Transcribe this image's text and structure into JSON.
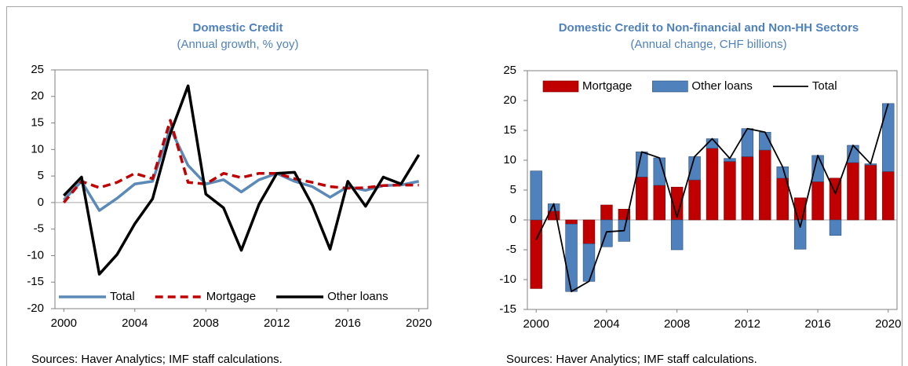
{
  "chart_data": [
    {
      "type": "line",
      "title": "Domestic Credit",
      "subtitle": "(Annual growth, % yoy)",
      "x": [
        2000,
        2001,
        2002,
        2003,
        2004,
        2005,
        2006,
        2007,
        2008,
        2009,
        2010,
        2011,
        2012,
        2013,
        2014,
        2015,
        2016,
        2017,
        2018,
        2019,
        2020
      ],
      "xlim": [
        1999.5,
        2020.5
      ],
      "xticks": [
        2000,
        2004,
        2008,
        2012,
        2016,
        2020
      ],
      "ylim": [
        -20,
        25
      ],
      "yticks": [
        -20,
        -15,
        -10,
        -5,
        0,
        5,
        10,
        15,
        20,
        25
      ],
      "legend": "bottom",
      "series": [
        {
          "name": "Total",
          "color": "#5b8ab8",
          "dash": false,
          "values": [
            0.5,
            4,
            -1.5,
            0.8,
            3.5,
            4,
            14,
            7,
            3.5,
            4.3,
            2,
            4.3,
            5.5,
            4,
            3,
            1,
            3,
            2.3,
            3.2,
            3.3,
            4
          ]
        },
        {
          "name": "Mortgage",
          "color": "#c00000",
          "dash": true,
          "values": [
            0,
            4,
            2.8,
            3.8,
            5.5,
            4.5,
            15.5,
            3.8,
            3.5,
            5.5,
            4.7,
            5.5,
            5.5,
            4.5,
            3.8,
            3,
            2.7,
            2.8,
            3.2,
            3.3,
            3.3
          ]
        },
        {
          "name": "Other loans",
          "color": "#000000",
          "dash": false,
          "values": [
            1.3,
            4.8,
            -13.5,
            -9.8,
            -4,
            0.7,
            13,
            22,
            1.6,
            -1,
            -9,
            -0.3,
            5.5,
            5.7,
            -0.5,
            -8.8,
            4,
            -0.7,
            4.8,
            3.5,
            9
          ]
        }
      ],
      "note": "Sources: Haver Analytics; IMF staff calculations."
    },
    {
      "type": "bar",
      "title": "Domestic Credit to Non-financial and Non-HH Sectors",
      "subtitle": "(Annual change, CHF billions)",
      "x": [
        2000,
        2001,
        2002,
        2003,
        2004,
        2005,
        2006,
        2007,
        2008,
        2009,
        2010,
        2011,
        2012,
        2013,
        2014,
        2015,
        2016,
        2017,
        2018,
        2019,
        2020
      ],
      "xlim": [
        1999.5,
        2020.5
      ],
      "xticks": [
        2000,
        2004,
        2008,
        2012,
        2016,
        2020
      ],
      "ylim": [
        -15,
        25
      ],
      "yticks": [
        -15,
        -10,
        -5,
        0,
        5,
        10,
        15,
        20,
        25
      ],
      "legend": "top",
      "stacked": true,
      "series": [
        {
          "name": "Mortgage",
          "color": "#c00000",
          "edgecolor": "#7f0000",
          "values": [
            -11.5,
            1.5,
            -0.7,
            -4,
            2.5,
            1.8,
            7.2,
            5.8,
            5.5,
            6.7,
            12,
            9.8,
            10.6,
            11.7,
            7,
            3.7,
            6.4,
            7,
            9.6,
            9.2,
            8.1
          ]
        },
        {
          "name": "Other loans",
          "color": "#4f81bd",
          "edgecolor": "#2f4f7a",
          "values": [
            8.2,
            1.2,
            -11.3,
            -6.3,
            -4.5,
            -3.6,
            4.2,
            4.6,
            -5,
            3.9,
            1.6,
            0.5,
            4.7,
            3,
            1.9,
            -4.9,
            4.4,
            -2.6,
            2.9,
            0.2,
            11.4
          ]
        },
        {
          "name": "Total",
          "color": "#000000",
          "type": "line",
          "values": [
            -3.3,
            2.7,
            -12,
            -10.3,
            -2,
            -1.8,
            11.4,
            10.4,
            0.5,
            10.6,
            13.6,
            10.3,
            15.3,
            14.7,
            8.9,
            -1.2,
            10.8,
            4.4,
            12.5,
            9.4,
            19.5
          ]
        }
      ],
      "note": "Sources: Haver Analytics; IMF staff calculations."
    }
  ]
}
